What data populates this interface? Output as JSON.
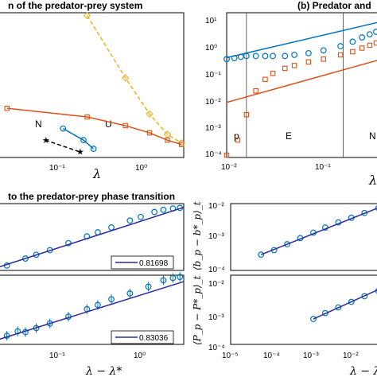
{
  "titles": {
    "a": "n of the predator-prey system",
    "b": "(b) Predator and",
    "c": "to the predator-prey phase transition"
  },
  "axis_labels": {
    "lambda": "λ",
    "lambda_cut": "λ",
    "lambda_diff": "λ − λ*",
    "b_diff": "⟨b_p − b*_p⟩_t",
    "P_diff": "⟨P_p − P*_p⟩_t"
  },
  "tick_labels": {
    "a_x": [
      "10⁻¹",
      "10⁰"
    ],
    "b_y": [
      "10⁻⁴",
      "10⁻³",
      "10⁻²",
      "10⁻¹",
      "10⁰",
      "10¹"
    ],
    "b_x": [
      "10⁻²",
      "10⁻¹"
    ],
    "c_x": [
      "10⁻¹",
      "10⁰"
    ],
    "d_y": [
      "10⁻⁴",
      "10⁻³",
      "10⁻²"
    ],
    "e_y": [
      "10⁻⁴",
      "10⁻³",
      "10⁻²"
    ],
    "e_x": [
      "10⁻⁵",
      "10⁻⁴",
      "10⁻³",
      "10⁻²"
    ]
  },
  "annotations": {
    "phase_N": "N",
    "phase_U": "U",
    "region_p": "p",
    "region_E": "E",
    "region_N": "N"
  },
  "legends": {
    "slope_top": "0.81698",
    "slope_bottom": "0.83036"
  },
  "colors": {
    "blue": "#0072BD",
    "orange": "#D95319",
    "yellow": "#EDB120",
    "fit": "#2a2a9e"
  },
  "chart_data": [
    {
      "panel": "a",
      "type": "line",
      "title": "n of the predator-prey system",
      "xlabel": "λ",
      "xscale": "log",
      "xlim": [
        0.008,
        1.6
      ],
      "series": [
        {
          "name": "",
          "marker": "diamond",
          "style": "dashed",
          "color": "yellow",
          "x": [
            0.1,
            0.3,
            0.6,
            1.0,
            1.5
          ],
          "y": [
            0.98,
            0.55,
            0.3,
            0.16,
            0.1
          ]
        },
        {
          "name": "",
          "marker": "square",
          "style": "solid",
          "color": "orange",
          "x": [
            0.01,
            0.1,
            0.3,
            0.6,
            1.0,
            1.5
          ],
          "y": [
            0.34,
            0.28,
            0.22,
            0.17,
            0.12,
            0.09
          ]
        },
        {
          "name": "",
          "marker": "circle",
          "style": "solid",
          "color": "blue",
          "x": [
            0.05,
            0.09,
            0.12
          ],
          "y": [
            0.2,
            0.12,
            0.06
          ]
        },
        {
          "name": "",
          "marker": "star",
          "style": "dashed",
          "color": "black",
          "x": [
            0.03,
            0.08
          ],
          "y": [
            0.12,
            0.04
          ]
        }
      ],
      "labels": [
        "N",
        "U"
      ]
    },
    {
      "panel": "b",
      "type": "scatter",
      "title": "(b) Predator and",
      "xlabel": "λ",
      "xscale": "log",
      "yscale": "log",
      "xlim": [
        0.01,
        0.4
      ],
      "ylim": [
        0.0001,
        10
      ],
      "vlines": [
        0.016,
        0.16
      ],
      "regions": [
        "p",
        "E",
        "N"
      ],
      "series": [
        {
          "name": "",
          "marker": "circle",
          "color": "blue",
          "x": [
            0.01,
            0.012,
            0.014,
            0.016,
            0.02,
            0.025,
            0.03,
            0.04,
            0.05,
            0.07,
            0.1,
            0.15,
            0.2,
            0.25,
            0.3,
            0.35
          ],
          "y": [
            0.25,
            0.27,
            0.3,
            0.32,
            0.32,
            0.32,
            0.32,
            0.32,
            0.35,
            0.4,
            0.5,
            0.7,
            1.0,
            1.4,
            1.8,
            2.2
          ]
        },
        {
          "name": "",
          "marker": "square",
          "color": "orange",
          "x": [
            0.01,
            0.013,
            0.016,
            0.02,
            0.025,
            0.03,
            0.04,
            0.05,
            0.07,
            0.1,
            0.15,
            0.2,
            0.25,
            0.3,
            0.35
          ],
          "y": [
            0.00012,
            0.0004,
            0.003,
            0.02,
            0.05,
            0.08,
            0.12,
            0.15,
            0.2,
            0.25,
            0.35,
            0.45,
            0.6,
            0.75,
            0.9
          ]
        },
        {
          "name": "",
          "style": "line",
          "color": "blue",
          "x": [
            0.01,
            0.4
          ],
          "y": [
            0.28,
            5.0
          ]
        },
        {
          "name": "",
          "style": "line",
          "color": "orange",
          "x": [
            0.01,
            0.4
          ],
          "y": [
            0.008,
            0.25
          ]
        }
      ]
    },
    {
      "panel": "c_top",
      "type": "scatter",
      "title": "to the predator-prey phase transition",
      "xscale": "log",
      "yscale": "log",
      "xlim": [
        0.0015,
        1.5
      ],
      "ylim": [
        0.0006,
        0.15
      ],
      "series": [
        {
          "name": "",
          "marker": "circle",
          "color": "blue",
          "x": [
            0.002,
            0.004,
            0.006,
            0.01,
            0.02,
            0.04,
            0.06,
            0.1,
            0.2,
            0.3,
            0.5,
            0.7,
            1.0,
            1.3
          ],
          "y": [
            0.0009,
            0.0016,
            0.0022,
            0.0032,
            0.0057,
            0.01,
            0.014,
            0.021,
            0.037,
            0.05,
            0.075,
            0.09,
            0.1,
            0.105
          ]
        },
        {
          "name": "0.81698",
          "style": "line",
          "color": "fit",
          "x": [
            0.0015,
            1.5
          ],
          "y": [
            0.0008,
            0.11
          ]
        }
      ]
    },
    {
      "panel": "c_bottom",
      "type": "scatter",
      "xlabel": "λ − λ*",
      "xscale": "log",
      "yscale": "log",
      "xlim": [
        0.0015,
        1.5
      ],
      "ylim": [
        0.0006,
        0.15
      ],
      "series": [
        {
          "name": "",
          "marker": "circle",
          "color": "blue",
          "errorbars": true,
          "x": [
            0.002,
            0.003,
            0.004,
            0.006,
            0.01,
            0.02,
            0.04,
            0.06,
            0.1,
            0.2,
            0.4,
            0.7,
            1.0,
            1.3
          ],
          "y": [
            0.0012,
            0.0017,
            0.0016,
            0.0022,
            0.0032,
            0.0055,
            0.01,
            0.014,
            0.022,
            0.035,
            0.06,
            0.1,
            0.12,
            0.13
          ]
        },
        {
          "name": "0.83036",
          "style": "line",
          "color": "fit",
          "x": [
            0.0015,
            1.5
          ],
          "y": [
            0.0009,
            0.09
          ]
        }
      ]
    },
    {
      "panel": "d",
      "type": "scatter",
      "ylabel": "⟨b_p − b*_p⟩_t",
      "xscale": "log",
      "yscale": "log",
      "xlim": [
        1e-05,
        0.03
      ],
      "ylim": [
        0.0001,
        0.02
      ],
      "series": [
        {
          "name": "",
          "marker": "circle",
          "color": "blue",
          "x": [
            5e-05,
            0.0001,
            0.0002,
            0.0004,
            0.0008,
            0.0015,
            0.003,
            0.006,
            0.012,
            0.025
          ],
          "y": [
            0.00035,
            0.0005,
            0.0008,
            0.0013,
            0.002,
            0.003,
            0.0045,
            0.0065,
            0.0095,
            0.014
          ]
        },
        {
          "name": "",
          "style": "line",
          "color": "fit",
          "x": [
            5e-05,
            0.03
          ],
          "y": [
            0.00035,
            0.016
          ]
        }
      ]
    },
    {
      "panel": "e",
      "type": "scatter",
      "xlabel": "λ − λ*",
      "ylabel": "⟨P_p − P*_p⟩_t",
      "xscale": "log",
      "yscale": "log",
      "xlim": [
        1e-05,
        0.03
      ],
      "ylim": [
        0.0001,
        0.02
      ],
      "series": [
        {
          "name": "",
          "marker": "circle",
          "color": "blue",
          "x": [
            0.0008,
            0.0015,
            0.003,
            0.006,
            0.012,
            0.025
          ],
          "y": [
            0.0007,
            0.0011,
            0.0017,
            0.0026,
            0.004,
            0.006
          ]
        },
        {
          "name": "",
          "style": "line",
          "color": "fit",
          "x": [
            0.0008,
            0.03
          ],
          "y": [
            0.0007,
            0.0075
          ]
        }
      ]
    }
  ]
}
